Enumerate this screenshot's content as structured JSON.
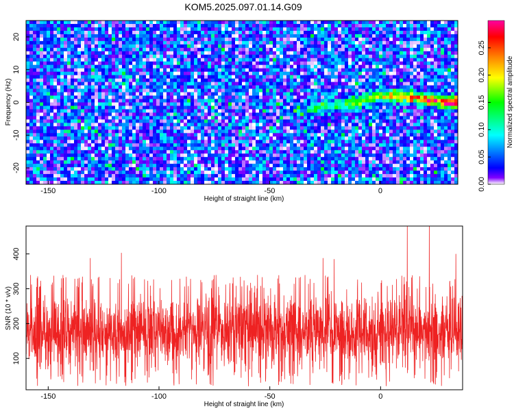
{
  "figure": {
    "title": "KOM5.2025.097.01.14.G09"
  },
  "chart_data": [
    {
      "type": "heatmap",
      "xlabel": "Height of straight line (km)",
      "ylabel": "Frequency (Hz)",
      "xlim": [
        -160,
        35
      ],
      "ylim": [
        -25,
        25
      ],
      "x_ticks": [
        -150,
        -100,
        -50,
        0
      ],
      "y_ticks": [
        -20,
        -10,
        0,
        10,
        20
      ],
      "colorbar": {
        "label": "Normalized spectral amplitude",
        "range": [
          0,
          0.3
        ],
        "ticks": [
          0.0,
          0.05,
          0.1,
          0.15,
          0.2,
          0.25
        ],
        "tick_labels": [
          "0.00",
          "0.05",
          "0.10",
          "0.15",
          "0.20",
          "0.25"
        ],
        "colors": [
          "#ffffff",
          "#8000ff",
          "#0000ff",
          "#00ffff",
          "#00ff00",
          "#ffff00",
          "#ff8000",
          "#ff0000",
          "#ff00a0"
        ]
      },
      "ridge": {
        "x": [
          -40,
          -30,
          -20,
          -10,
          0,
          10,
          20,
          30,
          33
        ],
        "y": [
          -3,
          -2,
          -1,
          0,
          2,
          2,
          1,
          0,
          0
        ]
      },
      "background_level": 0.04
    },
    {
      "type": "line",
      "xlabel": "Height of straight line (km)",
      "ylabel": "SNR (10 * v/v)",
      "xlim": [
        -160,
        37
      ],
      "ylim": [
        10,
        480
      ],
      "x_ticks": [
        -150,
        -100,
        -50,
        0
      ],
      "y_ticks": [
        100,
        200,
        300,
        400
      ],
      "color": "#ee2222",
      "typical_range": [
        60,
        300
      ],
      "spikes": [
        {
          "x": 12,
          "y": 480
        },
        {
          "x": 22,
          "y": 480
        },
        {
          "x": -117,
          "y": 403
        },
        {
          "x": -131,
          "y": 388
        },
        {
          "x": -26,
          "y": 388
        },
        {
          "x": -21,
          "y": 385
        },
        {
          "x": 34,
          "y": 400
        },
        {
          "x": -155,
          "y": 330
        }
      ]
    }
  ]
}
